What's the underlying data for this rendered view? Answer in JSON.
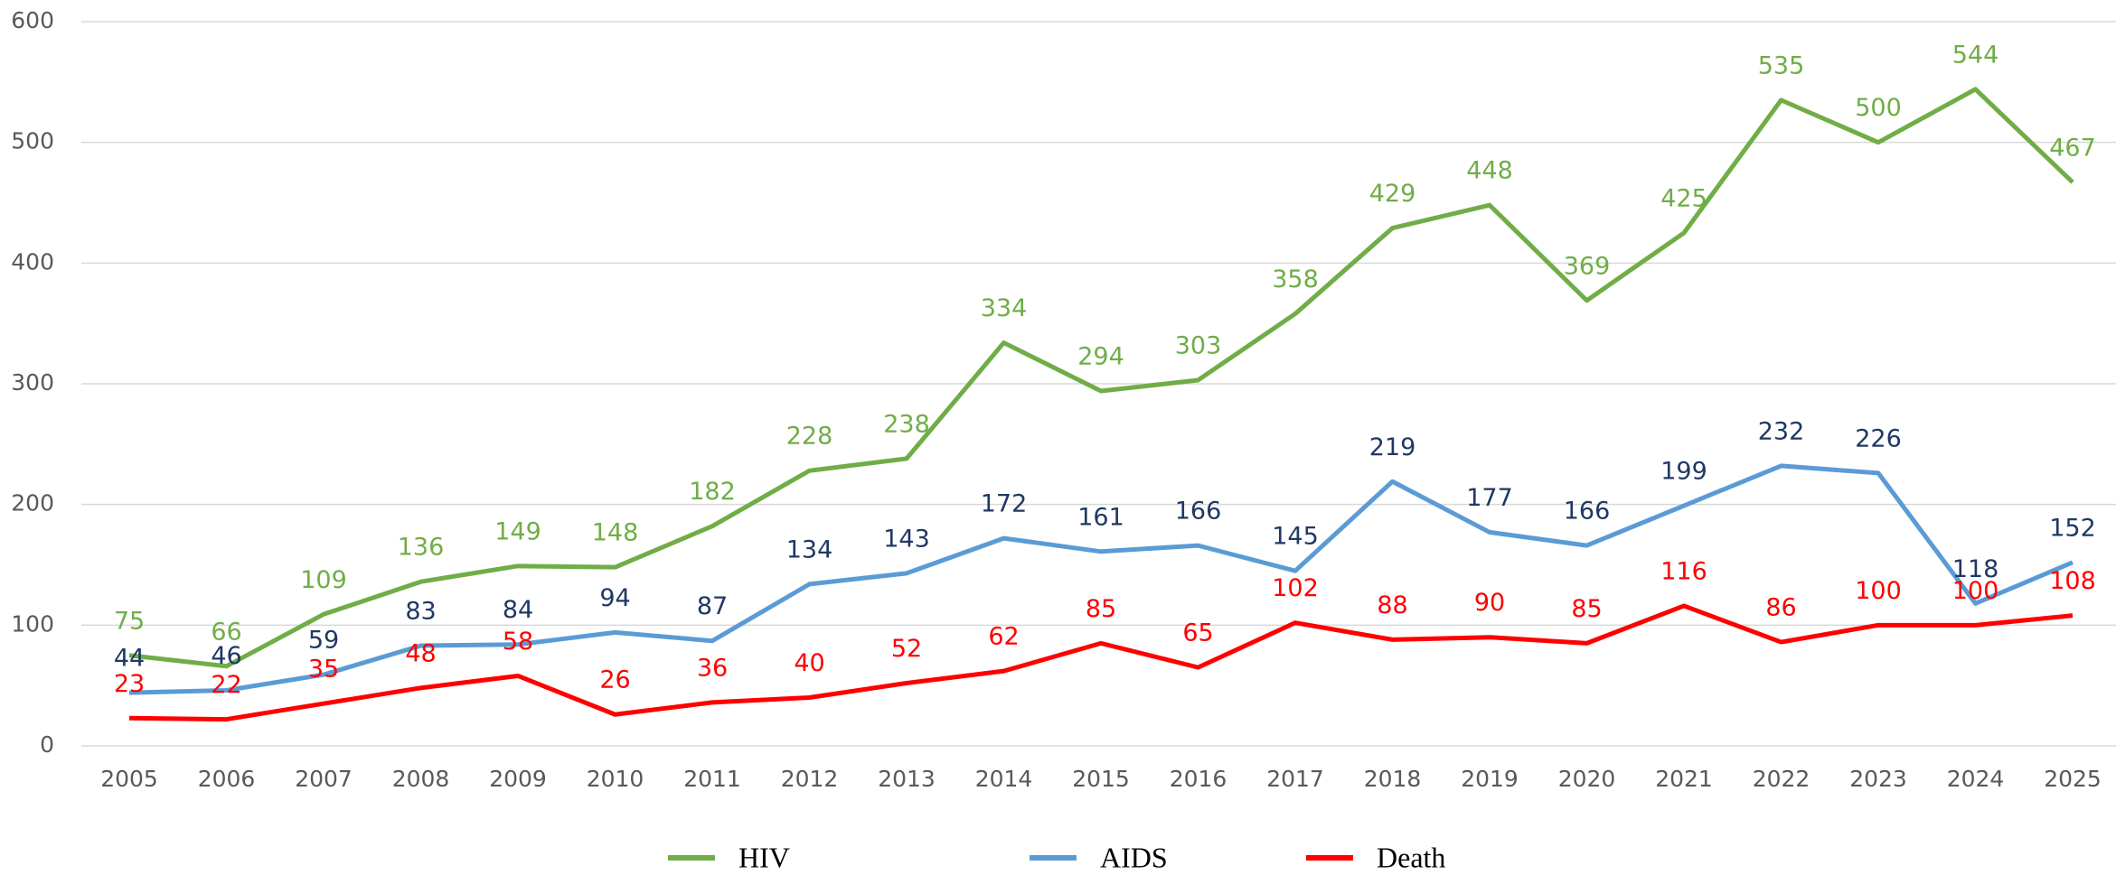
{
  "chart_data": {
    "type": "line",
    "categories": [
      2005,
      2006,
      2007,
      2008,
      2009,
      2010,
      2011,
      2012,
      2013,
      2014,
      2015,
      2016,
      2017,
      2018,
      2019,
      2020,
      2021,
      2022,
      2023,
      2024,
      2025
    ],
    "series": [
      {
        "name": "HIV",
        "color": "#70ad47",
        "label_color": "#70ad47",
        "values": [
          75,
          66,
          109,
          136,
          149,
          148,
          182,
          228,
          238,
          334,
          294,
          303,
          358,
          429,
          448,
          369,
          425,
          535,
          500,
          544,
          467
        ]
      },
      {
        "name": "AIDS",
        "color": "#5b9bd5",
        "label_color": "#1f3864",
        "values": [
          44,
          46,
          59,
          83,
          84,
          94,
          87,
          134,
          143,
          172,
          161,
          166,
          145,
          219,
          177,
          166,
          199,
          232,
          226,
          118,
          152
        ]
      },
      {
        "name": "Death",
        "color": "#ff0000",
        "label_color": "#ff0000",
        "values": [
          23,
          22,
          35,
          48,
          58,
          26,
          36,
          40,
          52,
          62,
          85,
          65,
          102,
          88,
          90,
          85,
          116,
          86,
          100,
          100,
          108
        ]
      }
    ],
    "ylim": [
      0,
      600
    ],
    "yticks": [
      0,
      100,
      200,
      300,
      400,
      500,
      600
    ],
    "grid": true,
    "legend": "bottom"
  }
}
